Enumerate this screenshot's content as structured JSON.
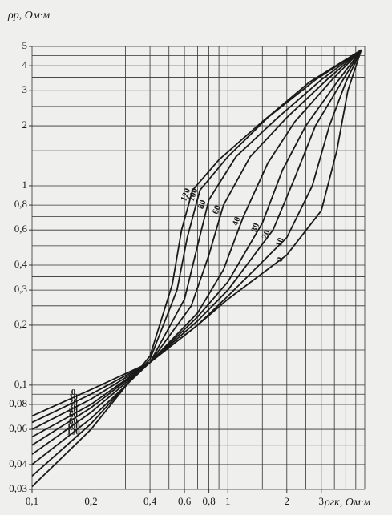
{
  "chart_data": {
    "type": "line",
    "log_x": true,
    "log_y": true,
    "grid": true,
    "color": "#1a1a1a",
    "y_label": "ρр, Ом·м",
    "x_label": "ρгк, Ом·м",
    "xlim": [
      0.1,
      5
    ],
    "ylim": [
      0.03,
      5
    ],
    "xticks": [
      {
        "value": 0.1,
        "label": "0,1"
      },
      {
        "value": 0.2,
        "label": "0,2"
      },
      {
        "value": 0.4,
        "label": "0,4"
      },
      {
        "value": 0.6,
        "label": "0,6"
      },
      {
        "value": 0.8,
        "label": "0,8"
      },
      1,
      2,
      3
    ],
    "yticks": [
      {
        "value": 0.03,
        "label": "0,03"
      },
      {
        "value": 0.04,
        "label": "0,04"
      },
      {
        "value": 0.06,
        "label": "0,06"
      },
      {
        "value": 0.08,
        "label": "0,08"
      },
      {
        "value": 0.1,
        "label": "0,1"
      },
      {
        "value": 0.2,
        "label": "0,2"
      },
      {
        "value": 0.3,
        "label": "0,3"
      },
      {
        "value": 0.4,
        "label": "0,4"
      },
      {
        "value": 0.6,
        "label": "0,6"
      },
      {
        "value": 0.8,
        "label": "0,8"
      },
      1,
      2,
      3,
      4,
      5
    ],
    "xgrid": [
      0.1,
      0.2,
      0.3,
      0.4,
      0.5,
      0.6,
      0.7,
      0.8,
      0.9,
      1,
      1.5,
      2,
      2.5,
      3,
      3.5,
      4,
      4.5,
      5
    ],
    "ygrid": [
      0.03,
      0.04,
      0.05,
      0.06,
      0.07,
      0.08,
      0.09,
      0.1,
      0.15,
      0.2,
      0.25,
      0.3,
      0.35,
      0.4,
      0.5,
      0.6,
      0.7,
      0.8,
      0.9,
      1,
      1.5,
      2,
      2.5,
      3,
      3.5,
      4,
      4.5,
      5
    ],
    "series": [
      {
        "name": "0",
        "x": [
          0.1,
          0.2,
          0.4,
          0.7,
          1,
          2,
          3,
          3.6,
          4.1,
          4.8
        ],
        "values": [
          0.07,
          0.095,
          0.13,
          0.2,
          0.27,
          0.45,
          0.75,
          1.5,
          3,
          4.8
        ]
      },
      {
        "name": "10",
        "x": [
          0.1,
          0.2,
          0.4,
          0.7,
          1,
          2,
          2.7,
          3.3,
          4,
          4.8
        ],
        "values": [
          0.065,
          0.09,
          0.13,
          0.2,
          0.28,
          0.55,
          1,
          2,
          3.3,
          4.8
        ]
      },
      {
        "name": "20",
        "x": [
          0.1,
          0.2,
          0.4,
          0.7,
          1,
          1.7,
          2.2,
          2.8,
          3.8,
          4.8
        ],
        "values": [
          0.06,
          0.085,
          0.13,
          0.21,
          0.3,
          0.6,
          1.1,
          2,
          3.3,
          4.8
        ]
      },
      {
        "name": "30",
        "x": [
          0.1,
          0.2,
          0.4,
          0.7,
          1,
          1.5,
          1.9,
          2.5,
          3.6,
          4.8
        ],
        "values": [
          0.055,
          0.08,
          0.13,
          0.22,
          0.33,
          0.65,
          1.2,
          2,
          3.3,
          4.8
        ]
      },
      {
        "name": "40",
        "x": [
          0.1,
          0.2,
          0.4,
          0.7,
          0.95,
          1.2,
          1.6,
          2.2,
          3.4,
          4.8
        ],
        "values": [
          0.05,
          0.077,
          0.13,
          0.23,
          0.38,
          0.7,
          1.3,
          2.1,
          3.4,
          4.8
        ]
      },
      {
        "name": "60",
        "x": [
          0.1,
          0.2,
          0.4,
          0.65,
          0.8,
          0.95,
          1.3,
          2,
          3.2,
          4.8
        ],
        "values": [
          0.045,
          0.073,
          0.13,
          0.25,
          0.45,
          0.8,
          1.4,
          2.2,
          3.4,
          4.8
        ]
      },
      {
        "name": "80",
        "x": [
          0.1,
          0.2,
          0.4,
          0.6,
          0.7,
          0.8,
          1.1,
          1.8,
          3,
          4.8
        ],
        "values": [
          0.04,
          0.068,
          0.13,
          0.27,
          0.5,
          0.85,
          1.4,
          2.2,
          3.4,
          4.8
        ]
      },
      {
        "name": "100",
        "x": [
          0.1,
          0.2,
          0.4,
          0.55,
          0.62,
          0.72,
          1,
          1.6,
          2.8,
          4.8
        ],
        "values": [
          0.035,
          0.064,
          0.135,
          0.3,
          0.55,
          0.95,
          1.4,
          2.2,
          3.4,
          4.8
        ]
      },
      {
        "name": "120",
        "x": [
          0.1,
          0.2,
          0.4,
          0.52,
          0.58,
          0.66,
          0.9,
          1.5,
          2.6,
          4.8
        ],
        "values": [
          0.031,
          0.06,
          0.14,
          0.32,
          0.6,
          0.95,
          1.35,
          2.1,
          3.3,
          4.8
        ]
      }
    ]
  }
}
